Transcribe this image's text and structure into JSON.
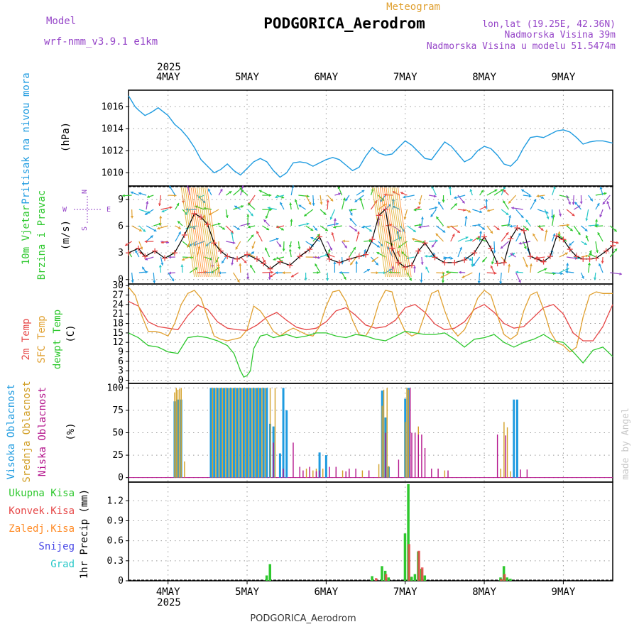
{
  "header": {
    "model_label": "Model",
    "model_name": "wrf-nmm_v3.9.1  e1km",
    "title": "PODGORICA_Aerodrom",
    "subtitle": "Meteogram",
    "lonlat": "lon,lat (19.25E, 42.36N)",
    "elevation": "Nadmorska Visina 39m",
    "model_elevation": "Nadmorska Visina u modelu 51.5474m",
    "footer": "PODGORICA_Aerodrom",
    "credit": "made by Angel"
  },
  "colors": {
    "pressure": "#1e9be0",
    "temp2m": "#e64646",
    "sfc": "#e0a030",
    "dewpt": "#2ec82e",
    "high": "#1e9be0",
    "mid": "#d2a028",
    "low": "#b4148c",
    "precip_total": "#2ec82e",
    "precip_conv": "#e64646",
    "precip_frozen": "#ff8c28",
    "snow": "#4646e6",
    "hail": "#28c8c8",
    "wind_purple": "#9646c8",
    "credit": "#c8c8c8"
  },
  "time_axis": {
    "year": "2025",
    "days": [
      "4MAY",
      "5MAY",
      "6MAY",
      "7MAY",
      "8MAY",
      "9MAY"
    ],
    "day_positions_hours": [
      12,
      36,
      60,
      84,
      108,
      132
    ],
    "range_hours": [
      0,
      147
    ]
  },
  "chart_data": [
    {
      "id": "pressure",
      "type": "line",
      "ylabel": "Pritisak na nivou mora",
      "unit": "(hPa)",
      "yticks": [
        1010,
        1012,
        1014,
        1016
      ],
      "ylim": [
        1008.8,
        1017.5
      ],
      "series": [
        {
          "x": [
            0,
            1,
            2,
            3,
            5,
            7,
            9,
            12,
            14,
            16,
            18,
            20,
            22,
            24,
            26,
            28,
            30,
            32,
            34,
            36,
            38,
            40,
            42,
            44,
            46,
            48,
            50,
            52,
            54,
            56,
            58,
            60,
            62,
            64,
            66,
            68,
            70,
            72,
            74,
            76,
            78,
            80,
            82,
            84,
            86,
            88,
            90,
            92,
            94,
            96,
            98,
            100,
            102,
            104,
            106,
            108,
            110,
            112,
            114,
            116,
            118,
            120,
            122,
            124,
            126,
            128,
            130,
            132,
            134,
            136,
            138,
            140,
            142,
            144,
            147
          ],
          "y": [
            1017.0,
            1016.5,
            1016.0,
            1015.7,
            1015.2,
            1015.5,
            1015.9,
            1015.2,
            1014.4,
            1013.9,
            1013.2,
            1012.3,
            1011.2,
            1010.6,
            1010.0,
            1010.3,
            1010.8,
            1010.2,
            1009.8,
            1010.4,
            1011.0,
            1011.3,
            1011.0,
            1010.2,
            1009.6,
            1010.0,
            1010.9,
            1011.0,
            1010.9,
            1010.6,
            1010.9,
            1011.2,
            1011.4,
            1011.2,
            1010.7,
            1010.2,
            1010.5,
            1011.5,
            1012.3,
            1011.8,
            1011.6,
            1011.7,
            1012.3,
            1012.9,
            1012.5,
            1011.9,
            1011.3,
            1011.2,
            1012.0,
            1012.8,
            1012.4,
            1011.7,
            1011.0,
            1011.3,
            1012.0,
            1012.4,
            1012.2,
            1011.6,
            1010.8,
            1010.6,
            1011.2,
            1012.3,
            1013.2,
            1013.3,
            1013.2,
            1013.5,
            1013.8,
            1013.9,
            1013.7,
            1013.2,
            1012.6,
            1012.8,
            1012.9,
            1012.9,
            1012.7
          ]
        }
      ]
    },
    {
      "id": "wind",
      "type": "line",
      "ylabel": "10m Vjetar",
      "ylabel2": "Brzina i Pravac",
      "unit": "(m/s)",
      "legend_n": "N",
      "legend_w": "W",
      "legend_e": "E",
      "legend_s": "S",
      "yticks": [
        0,
        3,
        6,
        9
      ],
      "ylim": [
        -0.5,
        10.5
      ],
      "series": [
        {
          "name": "speed",
          "x": [
            0,
            3,
            5,
            8,
            11,
            14,
            17,
            20,
            22,
            24,
            26,
            28,
            30,
            33,
            36,
            39,
            41,
            43,
            46,
            49,
            52,
            55,
            58,
            61,
            64,
            67,
            70,
            72,
            74,
            76,
            78,
            80,
            82,
            84,
            86,
            88,
            90,
            93,
            96,
            99,
            102,
            105,
            108,
            110,
            112,
            114,
            116,
            118,
            120,
            122,
            124,
            126,
            128,
            130,
            132,
            134,
            136,
            138,
            140,
            142,
            145,
            147
          ],
          "y": [
            3.0,
            3.5,
            2.6,
            3.2,
            2.4,
            3.0,
            5.0,
            7.4,
            7.0,
            6.2,
            4.1,
            3.2,
            2.6,
            2.3,
            2.8,
            2.3,
            1.8,
            1.2,
            2.0,
            1.6,
            2.6,
            3.4,
            4.8,
            2.3,
            1.9,
            2.3,
            2.6,
            2.8,
            4.5,
            7.2,
            7.9,
            3.5,
            1.9,
            1.4,
            1.6,
            3.2,
            4.1,
            2.5,
            1.9,
            1.9,
            2.2,
            3.0,
            4.8,
            3.5,
            1.8,
            1.9,
            4.6,
            5.8,
            5.5,
            2.6,
            2.3,
            2.0,
            2.6,
            4.9,
            4.5,
            3.4,
            2.6,
            2.3,
            2.3,
            2.4,
            3.2,
            3.8
          ]
        }
      ]
    },
    {
      "id": "temperature",
      "type": "line",
      "ylabel": "2m Temp",
      "ylabel2": "SFC Temp",
      "ylabel3": "dewpt Temp",
      "unit": "(C)",
      "yticks": [
        0,
        3,
        6,
        9,
        12,
        15,
        18,
        21,
        24,
        27,
        30
      ],
      "ylim": [
        -1,
        30.5
      ],
      "series": [
        {
          "name": "2m",
          "x": [
            0,
            3,
            6,
            9,
            12,
            15,
            18,
            21,
            24,
            27,
            30,
            33,
            36,
            39,
            42,
            45,
            48,
            51,
            54,
            57,
            60,
            63,
            66,
            69,
            72,
            75,
            78,
            81,
            84,
            87,
            90,
            93,
            96,
            99,
            102,
            105,
            108,
            111,
            114,
            117,
            120,
            123,
            126,
            129,
            132,
            135,
            138,
            141,
            144,
            147
          ],
          "y": [
            25,
            23.5,
            18.5,
            17,
            16.5,
            16,
            20.5,
            23.8,
            22.5,
            18.5,
            16.5,
            16,
            15.8,
            17.5,
            20,
            21.5,
            19,
            16.8,
            16,
            16.5,
            18.5,
            22,
            23,
            20.5,
            17.5,
            16.5,
            17,
            19,
            23,
            24,
            21.5,
            17.8,
            16,
            16.5,
            18.5,
            22.5,
            24,
            21.5,
            18,
            16.5,
            17,
            20,
            23,
            24,
            21,
            15,
            12.5,
            12.5,
            17,
            24
          ]
        },
        {
          "name": "sfc",
          "x": [
            0,
            2,
            4,
            6,
            8,
            10,
            12,
            14,
            16,
            18,
            20,
            22,
            24,
            26,
            28,
            30,
            32,
            34,
            36,
            38,
            40,
            42,
            44,
            46,
            48,
            50,
            52,
            54,
            56,
            58,
            60,
            62,
            64,
            66,
            68,
            70,
            72,
            74,
            76,
            78,
            80,
            82,
            84,
            86,
            88,
            90,
            92,
            94,
            96,
            98,
            100,
            102,
            104,
            106,
            108,
            110,
            112,
            114,
            116,
            118,
            120,
            122,
            124,
            126,
            128,
            130,
            132,
            134,
            136,
            138,
            140,
            142,
            144,
            147
          ],
          "y": [
            29.5,
            27,
            20.5,
            15.5,
            15.5,
            15,
            14,
            18,
            24,
            27.5,
            28.5,
            26,
            20,
            14,
            13,
            12.5,
            13,
            13.5,
            16,
            23.5,
            22,
            19,
            15.5,
            14,
            15.5,
            16.5,
            15.5,
            14.5,
            14,
            17,
            23.5,
            28,
            28.5,
            25,
            19,
            14.5,
            14,
            17.5,
            24.5,
            28.5,
            28,
            20,
            15.5,
            14,
            15,
            21,
            27.5,
            28.5,
            22,
            16.5,
            14,
            16,
            20.5,
            26,
            28.5,
            27,
            20.5,
            14.5,
            13,
            14.5,
            22,
            27,
            28,
            22.5,
            15.5,
            12,
            11,
            9,
            10.5,
            20,
            27,
            28,
            27.5,
            27.5
          ]
        },
        {
          "name": "dewpt",
          "x": [
            0,
            3,
            6,
            9,
            12,
            15,
            18,
            21,
            24,
            27,
            30,
            32,
            34,
            35,
            36,
            37,
            38,
            40,
            42,
            44,
            46,
            48,
            51,
            54,
            57,
            60,
            63,
            66,
            69,
            72,
            75,
            78,
            81,
            84,
            87,
            90,
            93,
            96,
            99,
            102,
            105,
            108,
            111,
            114,
            117,
            120,
            123,
            126,
            129,
            132,
            135,
            138,
            141,
            144,
            147
          ],
          "y": [
            15,
            13.5,
            11,
            10.5,
            9,
            8.5,
            13.5,
            14,
            13.5,
            12.5,
            11,
            8.5,
            3,
            1,
            1.5,
            3,
            10,
            14,
            14.5,
            13.5,
            14,
            14.5,
            13.5,
            14,
            15,
            15,
            14,
            13.5,
            14.5,
            14,
            13,
            12.5,
            14,
            15.5,
            15,
            14.5,
            14.5,
            15,
            13,
            10.5,
            13,
            13.5,
            14.5,
            12,
            10.5,
            12,
            13,
            14.5,
            12.5,
            12,
            9,
            5.5,
            9.5,
            10.5,
            7.5
          ]
        }
      ]
    },
    {
      "id": "clouds",
      "type": "bar",
      "ylabel": "Visoka Oblacnost",
      "ylabel2": "Srednja Oblacnost",
      "ylabel3": "Niska Oblacnost",
      "unit": "(%)",
      "yticks": [
        0,
        25,
        50,
        75,
        100
      ],
      "ylim": [
        -5,
        105
      ],
      "series": [
        {
          "name": "high",
          "x": [
            14,
            15,
            16,
            25,
            26,
            27,
            28,
            29,
            30,
            31,
            32,
            33,
            34,
            35,
            36,
            37,
            38,
            39,
            40,
            41,
            42,
            43,
            44,
            46,
            47,
            48,
            58,
            60,
            77,
            78,
            79,
            84,
            85,
            117,
            118
          ],
          "y": [
            85,
            87,
            87,
            100,
            100,
            100,
            100,
            100,
            100,
            100,
            100,
            100,
            100,
            100,
            100,
            100,
            100,
            100,
            100,
            100,
            100,
            60,
            57,
            27,
            100,
            75,
            28,
            25,
            97,
            67,
            12,
            88,
            100,
            87,
            87
          ]
        },
        {
          "name": "mid",
          "x": [
            14,
            14.5,
            15,
            15.5,
            16,
            17,
            25.5,
            26.5,
            27.5,
            28.5,
            29.5,
            30.5,
            31.5,
            32.5,
            33.5,
            34.5,
            35.5,
            36.5,
            37.5,
            38.5,
            39.5,
            40.5,
            41.5,
            43,
            44.5,
            54,
            56,
            57,
            59,
            63,
            65,
            67,
            71,
            76,
            77,
            77.5,
            78.5,
            79,
            84,
            84.5,
            85,
            88,
            96,
            113,
            114,
            115,
            116
          ],
          "y": [
            95,
            100,
            98,
            99,
            100,
            18,
            100,
            100,
            100,
            100,
            100,
            100,
            100,
            100,
            100,
            100,
            100,
            100,
            100,
            100,
            100,
            100,
            100,
            100,
            100,
            10,
            8,
            10,
            10,
            8,
            8,
            6,
            8,
            15,
            80,
            98,
            100,
            13,
            62,
            100,
            98,
            57,
            8,
            10,
            62,
            56,
            7
          ]
        },
        {
          "name": "low",
          "x": [
            44,
            47,
            50,
            52,
            53,
            55,
            57,
            58,
            61,
            63,
            66,
            67,
            69,
            73,
            78,
            82,
            85.5,
            86,
            87,
            88,
            89,
            90,
            92,
            94,
            97,
            112,
            114.5,
            119,
            121
          ],
          "y": [
            39,
            10,
            39,
            12,
            8,
            12,
            7,
            8,
            12,
            12,
            7,
            10,
            10,
            8,
            50,
            20,
            100,
            50,
            50,
            48,
            48,
            33,
            10,
            10,
            8,
            48,
            47,
            9,
            9
          ]
        }
      ]
    },
    {
      "id": "precip",
      "type": "bar",
      "ylabel": "1hr Precip",
      "unit": "(mm)",
      "legend_total": "Ukupna Kisa",
      "legend_conv": "Konvek.Kisa",
      "legend_frozen": "Zaledj.Kisa",
      "legend_snow": "Snijeg",
      "legend_hail": "Grad",
      "yticks": [
        0,
        0.3,
        0.6,
        0.9,
        1.2
      ],
      "ylim": [
        0,
        1.48
      ],
      "series": [
        {
          "name": "total",
          "x": [
            42,
            43,
            74,
            77,
            78,
            79,
            84,
            85,
            86,
            87,
            88,
            89,
            90,
            113,
            114,
            115,
            116
          ],
          "y": [
            0.08,
            0.25,
            0.07,
            0.22,
            0.15,
            0.05,
            0.71,
            1.45,
            0.06,
            0.1,
            0.44,
            0.18,
            0.08,
            0.05,
            0.22,
            0.05,
            0.03
          ]
        },
        {
          "name": "convective",
          "x": [
            75,
            78,
            85,
            88,
            89,
            113,
            114
          ],
          "y": [
            0.04,
            0.1,
            0.55,
            0.45,
            0.2,
            0.03,
            0.1
          ]
        }
      ]
    }
  ]
}
